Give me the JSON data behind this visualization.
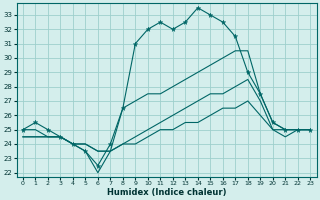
{
  "xlabel": "Humidex (Indice chaleur)",
  "background_color": "#d4eeec",
  "grid_color": "#9ecfcc",
  "line_color": "#006666",
  "hours": [
    0,
    1,
    2,
    3,
    4,
    5,
    6,
    7,
    8,
    9,
    10,
    11,
    12,
    13,
    14,
    15,
    16,
    17,
    18,
    19,
    20,
    21,
    22,
    23
  ],
  "main_series": [
    25,
    25.5,
    25,
    24.5,
    24,
    23.5,
    22.5,
    24,
    26.5,
    31,
    32,
    32.5,
    32,
    32.5,
    33.5,
    33,
    32.5,
    31.5,
    29,
    27.5,
    25.5,
    25,
    25,
    25
  ],
  "line2": [
    25,
    25,
    24.5,
    24.5,
    24,
    23.5,
    22,
    23.5,
    26.5,
    27,
    27.5,
    27.5,
    28,
    28.5,
    29,
    29.5,
    30,
    30.5,
    30.5,
    27.5,
    25.5,
    25,
    25,
    25
  ],
  "line3": [
    24.5,
    24.5,
    24.5,
    24.5,
    24,
    24,
    23.5,
    23.5,
    24,
    24.5,
    25,
    25.5,
    26,
    26.5,
    27,
    27.5,
    27.5,
    28,
    28.5,
    27,
    25,
    25,
    25,
    25
  ],
  "line4": [
    24.5,
    24.5,
    24.5,
    24.5,
    24,
    24,
    23.5,
    23.5,
    24,
    24,
    24.5,
    25,
    25,
    25.5,
    25.5,
    26,
    26.5,
    26.5,
    27,
    26,
    25,
    24.5,
    25,
    25
  ],
  "ylim": [
    22,
    33.5
  ],
  "xlim": [
    -0.5,
    23.5
  ],
  "yticks": [
    22,
    23,
    24,
    25,
    26,
    27,
    28,
    29,
    30,
    31,
    32,
    33
  ],
  "xticks": [
    0,
    1,
    2,
    3,
    4,
    5,
    6,
    7,
    8,
    9,
    10,
    11,
    12,
    13,
    14,
    15,
    16,
    17,
    18,
    19,
    20,
    21,
    22,
    23
  ]
}
